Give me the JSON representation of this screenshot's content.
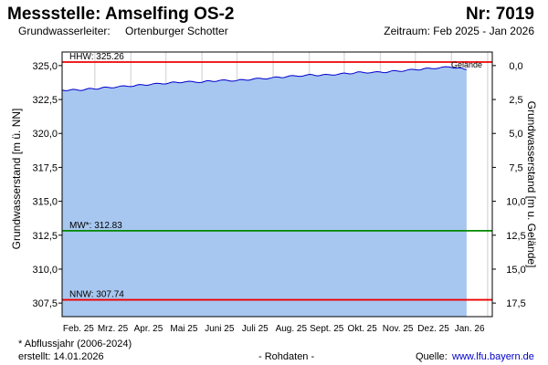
{
  "header": {
    "station_label": "Messstelle: Amselfing OS-2",
    "number_label": "Nr: 7019",
    "aquifer_label": "Grundwasserleiter:",
    "aquifer_value": "Ortenburger Schotter",
    "period_label": "Zeitraum: Feb 2025 - Jan 2026"
  },
  "footer": {
    "footnote": "* Abflussjahr (2006-2024)",
    "created": "erstellt:  14.01.2026",
    "raw_data": "- Rohdaten -",
    "source_label": "Quelle:",
    "source_link": "www.lfu.bayern.de"
  },
  "colors": {
    "fill": "#a7c7f0",
    "line": "#0000cc",
    "hhw": "#ee0000",
    "mw": "#008800",
    "nnw": "#ee0000",
    "grid": "#dddddd"
  },
  "chart_data": {
    "type": "area",
    "title": "",
    "ylabel": "Grundwasserstand [m ü. NN]",
    "y2label": "Grundwasserstand [m u. Gelände]",
    "ylim": [
      306.5,
      326.0
    ],
    "y_ticks": [
      "325,0",
      "322,5",
      "320,0",
      "317,5",
      "315,0",
      "312,5",
      "310,0",
      "307,5"
    ],
    "y_tick_values": [
      325.0,
      322.5,
      320.0,
      317.5,
      315.0,
      312.5,
      310.0,
      307.5
    ],
    "y2_ticks": [
      "0,0",
      "2,5",
      "5,0",
      "7,5",
      "10,0",
      "12,5",
      "15,0",
      "17,5"
    ],
    "x_month_labels": [
      "Feb. 25",
      "Mrz. 25",
      "Apr. 25",
      "Mai 25",
      "Juni 25",
      "Juli 25",
      "Aug. 25",
      "Sept. 25",
      "Okt. 25",
      "Nov. 25",
      "Dez. 25",
      "Jan. 26"
    ],
    "x": [
      "2025-02-01",
      "2025-02-15",
      "2025-03-01",
      "2025-03-15",
      "2025-04-01",
      "2025-04-15",
      "2025-05-01",
      "2025-05-15",
      "2025-06-01",
      "2025-06-15",
      "2025-07-01",
      "2025-07-15",
      "2025-08-01",
      "2025-08-15",
      "2025-09-01",
      "2025-09-15",
      "2025-10-01",
      "2025-10-15",
      "2025-11-01",
      "2025-11-15",
      "2025-12-01",
      "2025-12-15",
      "2026-01-01",
      "2026-01-14"
    ],
    "series": [
      {
        "values": [
          323.2,
          323.2,
          323.3,
          323.4,
          323.5,
          323.6,
          323.7,
          323.8,
          323.8,
          323.9,
          323.9,
          324.0,
          324.1,
          324.2,
          324.3,
          324.3,
          324.4,
          324.5,
          324.5,
          324.6,
          324.7,
          324.8,
          324.9,
          324.7
        ]
      }
    ],
    "reference_lines": [
      {
        "label": "HHW: 325.26",
        "value": 325.26
      },
      {
        "label": "MW*: 312.83",
        "value": 312.83
      },
      {
        "label": "NNW: 307.74",
        "value": 307.74
      }
    ],
    "annotations": [
      "Gelände"
    ],
    "grid": true
  }
}
